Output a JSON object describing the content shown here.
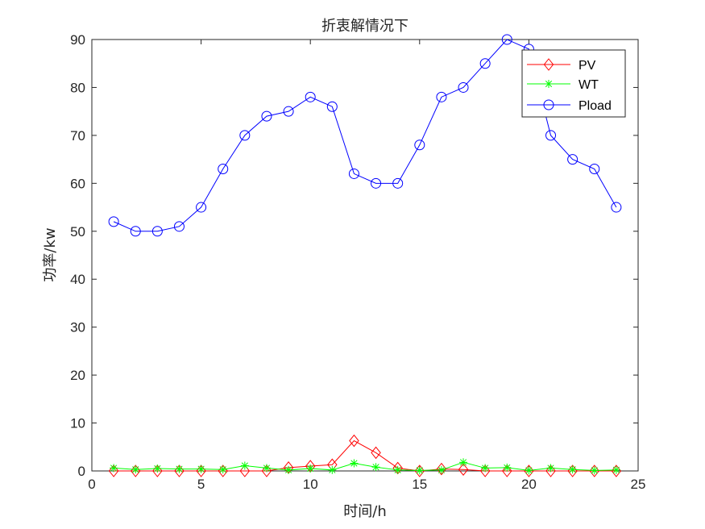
{
  "chart_data": {
    "type": "line",
    "title": "折衷解情况下",
    "xlabel": "时间/h",
    "ylabel": "功率/kw",
    "xlim": [
      0,
      25
    ],
    "ylim": [
      0,
      90
    ],
    "xticks": [
      0,
      5,
      10,
      15,
      20,
      25
    ],
    "yticks": [
      0,
      10,
      20,
      30,
      40,
      50,
      60,
      70,
      80,
      90
    ],
    "grid": false,
    "legend_position": "top-right",
    "x": [
      1,
      2,
      3,
      4,
      5,
      6,
      7,
      8,
      9,
      10,
      11,
      12,
      13,
      14,
      15,
      16,
      17,
      18,
      19,
      20,
      21,
      22,
      23,
      24
    ],
    "series": [
      {
        "name": "PV",
        "color": "#ff0000",
        "marker": "diamond",
        "values": [
          0,
          0,
          0,
          0,
          0,
          0,
          0,
          0,
          0.7,
          1.0,
          1.3,
          6.3,
          3.8,
          0.6,
          0,
          0.4,
          0.3,
          0,
          0,
          0,
          0,
          0,
          0,
          0
        ]
      },
      {
        "name": "WT",
        "color": "#00ff00",
        "marker": "asterisk",
        "values": [
          0.6,
          0.3,
          0.5,
          0.4,
          0.4,
          0.3,
          1.1,
          0.6,
          0.2,
          0.5,
          0.2,
          1.6,
          0.8,
          0.2,
          0.1,
          0.2,
          1.8,
          0.6,
          0.7,
          0.1,
          0.6,
          0.3,
          0.1,
          0.2
        ]
      },
      {
        "name": "Pload",
        "color": "#0000ff",
        "marker": "circle",
        "values": [
          52,
          50,
          50,
          51,
          55,
          63,
          70,
          74,
          75,
          78,
          76,
          62,
          60,
          60,
          68,
          78,
          80,
          85,
          90,
          88,
          70,
          65,
          63,
          55
        ]
      }
    ]
  }
}
